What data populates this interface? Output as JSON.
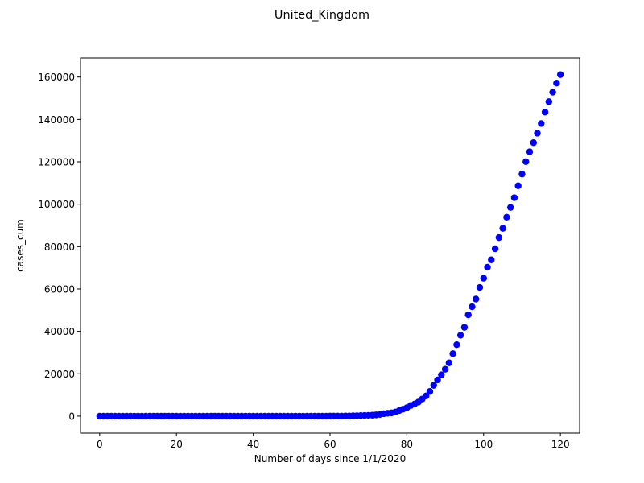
{
  "chart_data": {
    "type": "scatter",
    "title": "United_Kingdom",
    "xlabel": "Number of days since 1/1/2020",
    "ylabel": "cases_cum",
    "xlim": [
      -5,
      125
    ],
    "ylim": [
      -8000,
      169000
    ],
    "xticks": [
      0,
      20,
      40,
      60,
      80,
      100,
      120
    ],
    "yticks": [
      0,
      20000,
      40000,
      60000,
      80000,
      100000,
      120000,
      140000,
      160000
    ],
    "grid": false,
    "marker_color": "#0000ff",
    "series": [
      {
        "x": [
          0,
          1,
          2,
          3,
          4,
          5,
          6,
          7,
          8,
          9,
          10,
          11,
          12,
          13,
          14,
          15,
          16,
          17,
          18,
          19,
          20,
          21,
          22,
          23,
          24,
          25,
          26,
          27,
          28,
          29,
          30,
          31,
          32,
          33,
          34,
          35,
          36,
          37,
          38,
          39,
          40,
          41,
          42,
          43,
          44,
          45,
          46,
          47,
          48,
          49,
          50,
          51,
          52,
          53,
          54,
          55,
          56,
          57,
          58,
          59,
          60,
          61,
          62,
          63,
          64,
          65,
          66,
          67,
          68,
          69,
          70,
          71,
          72,
          73,
          74,
          75,
          76,
          77,
          78,
          79,
          80,
          81,
          82,
          83,
          84,
          85,
          86,
          87,
          88,
          89,
          90,
          91,
          92,
          93,
          94,
          95,
          96,
          97,
          98,
          99,
          100,
          101,
          102,
          103,
          104,
          105,
          106,
          107,
          108,
          109,
          110,
          111,
          112,
          113,
          114,
          115,
          116,
          117,
          118,
          119,
          120
        ],
        "y": [
          0,
          0,
          0,
          0,
          0,
          0,
          0,
          0,
          0,
          0,
          0,
          0,
          0,
          0,
          0,
          0,
          0,
          0,
          0,
          0,
          0,
          0,
          0,
          0,
          0,
          0,
          0,
          0,
          0,
          0,
          0,
          2,
          2,
          2,
          2,
          2,
          2,
          3,
          3,
          3,
          8,
          8,
          8,
          9,
          9,
          9,
          9,
          9,
          9,
          9,
          9,
          9,
          9,
          9,
          9,
          13,
          13,
          13,
          15,
          20,
          23,
          36,
          40,
          51,
          85,
          115,
          163,
          206,
          273,
          321,
          373,
          456,
          590,
          798,
          1140,
          1391,
          1543,
          1950,
          2626,
          3269,
          3983,
          5018,
          5683,
          6650,
          8077,
          9529,
          11658,
          14543,
          17089,
          19522,
          22141,
          25150,
          29474,
          33718,
          38168,
          41903,
          47806,
          51608,
          55242,
          60733,
          65077,
          70272,
          73758,
          78991,
          84279,
          88621,
          93873,
          98476,
          103093,
          108692,
          114217,
          120067,
          124743,
          129044,
          133495,
          138078,
          143464,
          148377,
          152840,
          157149,
          161145
        ]
      }
    ]
  }
}
